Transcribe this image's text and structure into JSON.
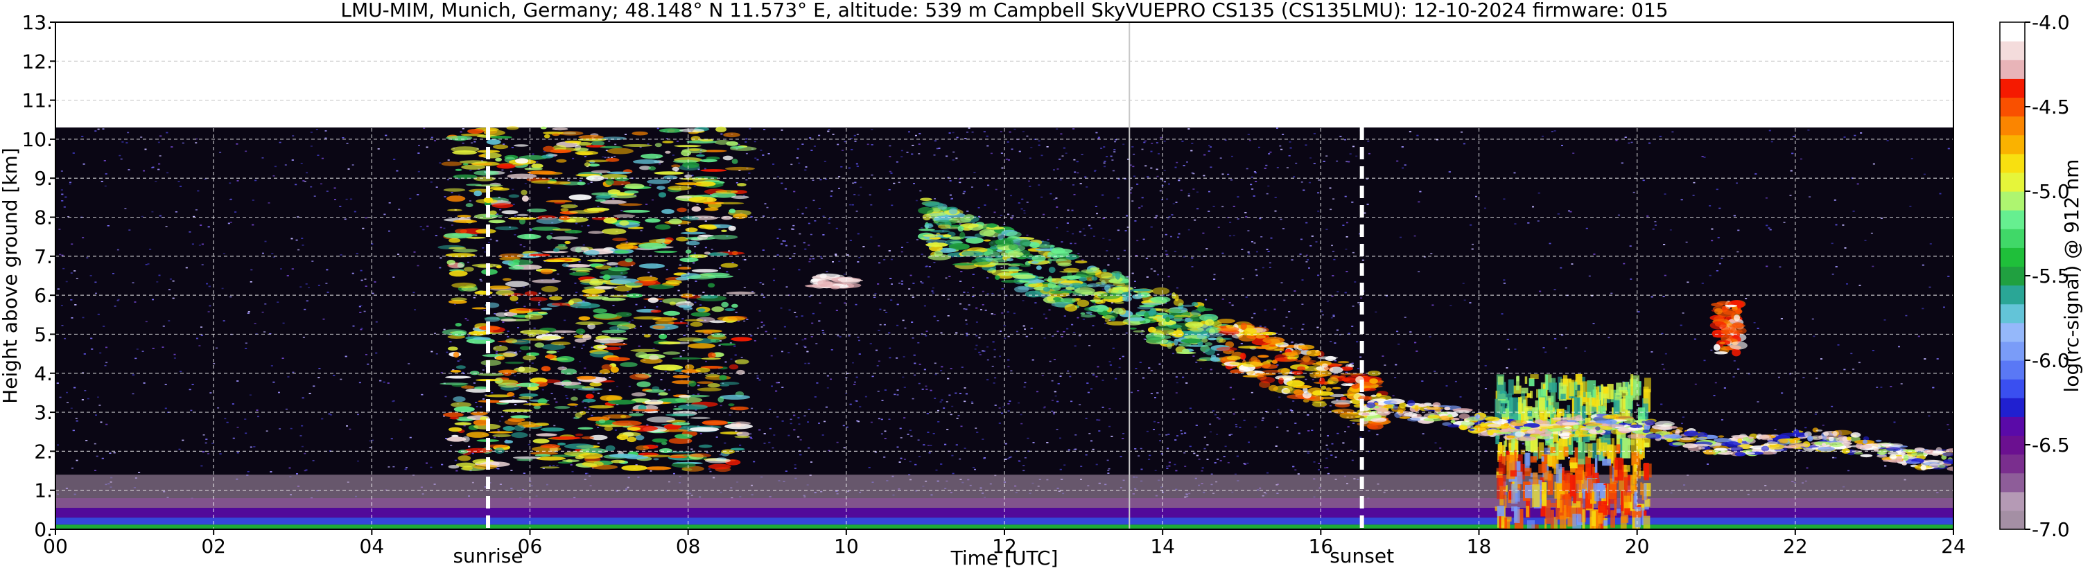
{
  "chart_data": {
    "type": "heatmap",
    "title": "LMU-MIM, Munich, Germany; 48.148° N 11.573° E, altitude: 539 m    Campbell SkyVUEPRO CS135 (CS135LMU): 12-10-2024    firmware: 015",
    "xlabel": "Time [UTC]",
    "ylabel": "Height above ground [km]",
    "xlim": [
      0,
      24
    ],
    "ylim": [
      0,
      13
    ],
    "x_ticks": [
      0,
      2,
      4,
      6,
      8,
      10,
      12,
      14,
      16,
      18,
      20,
      22,
      24
    ],
    "x_tick_labels": [
      "00",
      "02",
      "04",
      "06",
      "08",
      "10",
      "12",
      "14",
      "16",
      "18",
      "20",
      "22",
      "24"
    ],
    "y_ticks": [
      0,
      1,
      2,
      3,
      4,
      5,
      6,
      7,
      8,
      9,
      10,
      11,
      12,
      13
    ],
    "y_tick_labels": [
      "0.",
      "1.",
      "2.",
      "3.",
      "4.",
      "5.",
      "6.",
      "7.",
      "8.",
      "9.",
      "10.",
      "11.",
      "12.",
      "13."
    ],
    "grid": true,
    "data_top_km": 10.3,
    "cursor_line_x": 13.58,
    "markers": [
      {
        "label": "sunrise",
        "x": 5.47
      },
      {
        "label": "sunset",
        "x": 16.52
      }
    ],
    "colorbar": {
      "label": "log(rc-signal) @ 912 nm",
      "min": -7.0,
      "max": -4.0,
      "tick_values": [
        -7.0,
        -6.5,
        -6.0,
        -5.5,
        -5.0,
        -4.5,
        -4.0
      ],
      "tick_labels": [
        "-7.0",
        "-6.5",
        "-6.0",
        "-5.5",
        "-5.0",
        "-4.5",
        "-4.0"
      ],
      "colors": [
        "#a48fa4",
        "#b59ab5",
        "#8e5d99",
        "#7a2e8e",
        "#6b1090",
        "#5a0aa8",
        "#2020d0",
        "#3a4ff0",
        "#5a78f5",
        "#7a9cf8",
        "#95b8fa",
        "#63c4d8",
        "#2aa696",
        "#20a040",
        "#1fbf3a",
        "#40d868",
        "#66ef90",
        "#aef570",
        "#e6f53a",
        "#f8e010",
        "#fab200",
        "#fb8500",
        "#f95000",
        "#f51a00",
        "#e8b4b8",
        "#f4dcdc",
        "#ffffff"
      ]
    },
    "features": [
      {
        "name": "surface aerosol layer",
        "x": [
          0,
          24
        ],
        "y": [
          0,
          0.8
        ]
      },
      {
        "name": "high cloud band",
        "x": [
          5.0,
          8.7
        ],
        "y": [
          1.5,
          10.3
        ]
      },
      {
        "name": "elevated cloud",
        "x": [
          9.6,
          10.1
        ],
        "y": [
          6.2,
          6.5
        ]
      },
      {
        "name": "descending cloud layer",
        "x": [
          11.0,
          16.8
        ],
        "y": [
          2.6,
          7.8
        ]
      },
      {
        "name": "low convective cloud",
        "x": [
          18.2,
          20.1
        ],
        "y": [
          0.1,
          4.0
        ]
      },
      {
        "name": "cloud patch",
        "x": [
          21.0,
          21.3
        ],
        "y": [
          4.5,
          5.8
        ]
      },
      {
        "name": "low cloud layer",
        "x": [
          16.5,
          24
        ],
        "y": [
          1.5,
          3.2
        ]
      }
    ]
  }
}
